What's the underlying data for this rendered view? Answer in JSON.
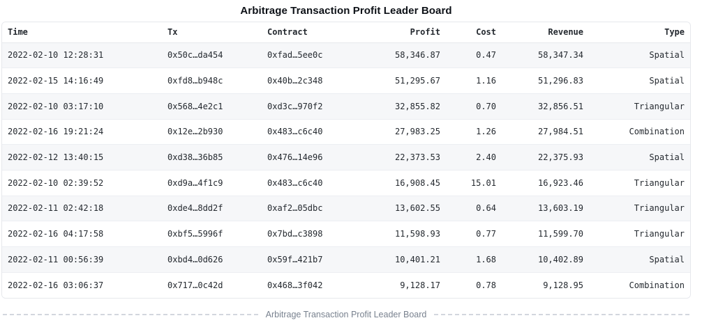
{
  "title": "Arbitrage Transaction Profit Leader Board",
  "caption": "Arbitrage Transaction Profit Leader Board",
  "colors": {
    "stripe": "#f6f7f9",
    "border": "#e6e8ec",
    "row_border": "#eceef2",
    "text": "#24292f",
    "caption_text": "#79828f",
    "caption_dash": "#c9cdd7"
  },
  "chart_data": {
    "type": "table",
    "title": "Arbitrage Transaction Profit Leader Board",
    "columns": [
      {
        "key": "time",
        "label": "Time",
        "align": "left"
      },
      {
        "key": "tx",
        "label": "Tx",
        "align": "left"
      },
      {
        "key": "contract",
        "label": "Contract",
        "align": "left"
      },
      {
        "key": "profit",
        "label": "Profit",
        "align": "right"
      },
      {
        "key": "cost",
        "label": "Cost",
        "align": "right"
      },
      {
        "key": "revenue",
        "label": "Revenue",
        "align": "right"
      },
      {
        "key": "type",
        "label": "Type",
        "align": "right"
      }
    ],
    "rows": [
      {
        "time": "2022-02-10 12:28:31",
        "tx": "0x50c…da454",
        "contract": "0xfad…5ee0c",
        "profit": "58,346.87",
        "cost": "0.47",
        "revenue": "58,347.34",
        "type": "Spatial"
      },
      {
        "time": "2022-02-15 14:16:49",
        "tx": "0xfd8…b948c",
        "contract": "0x40b…2c348",
        "profit": "51,295.67",
        "cost": "1.16",
        "revenue": "51,296.83",
        "type": "Spatial"
      },
      {
        "time": "2022-02-10 03:17:10",
        "tx": "0x568…4e2c1",
        "contract": "0xd3c…970f2",
        "profit": "32,855.82",
        "cost": "0.70",
        "revenue": "32,856.51",
        "type": "Triangular"
      },
      {
        "time": "2022-02-16 19:21:24",
        "tx": "0x12e…2b930",
        "contract": "0x483…c6c40",
        "profit": "27,983.25",
        "cost": "1.26",
        "revenue": "27,984.51",
        "type": "Combination"
      },
      {
        "time": "2022-02-12 13:40:15",
        "tx": "0xd38…36b85",
        "contract": "0x476…14e96",
        "profit": "22,373.53",
        "cost": "2.40",
        "revenue": "22,375.93",
        "type": "Spatial"
      },
      {
        "time": "2022-02-10 02:39:52",
        "tx": "0xd9a…4f1c9",
        "contract": "0x483…c6c40",
        "profit": "16,908.45",
        "cost": "15.01",
        "revenue": "16,923.46",
        "type": "Triangular"
      },
      {
        "time": "2022-02-11 02:42:18",
        "tx": "0xde4…8dd2f",
        "contract": "0xaf2…05dbc",
        "profit": "13,602.55",
        "cost": "0.64",
        "revenue": "13,603.19",
        "type": "Triangular"
      },
      {
        "time": "2022-02-16 04:17:58",
        "tx": "0xbf5…5996f",
        "contract": "0x7bd…c3898",
        "profit": "11,598.93",
        "cost": "0.77",
        "revenue": "11,599.70",
        "type": "Triangular"
      },
      {
        "time": "2022-02-11 00:56:39",
        "tx": "0xbd4…0d626",
        "contract": "0x59f…421b7",
        "profit": "10,401.21",
        "cost": "1.68",
        "revenue": "10,402.89",
        "type": "Spatial"
      },
      {
        "time": "2022-02-16 03:06:37",
        "tx": "0x717…0c42d",
        "contract": "0x468…3f042",
        "profit": "9,128.17",
        "cost": "0.78",
        "revenue": "9,128.95",
        "type": "Combination"
      }
    ]
  }
}
